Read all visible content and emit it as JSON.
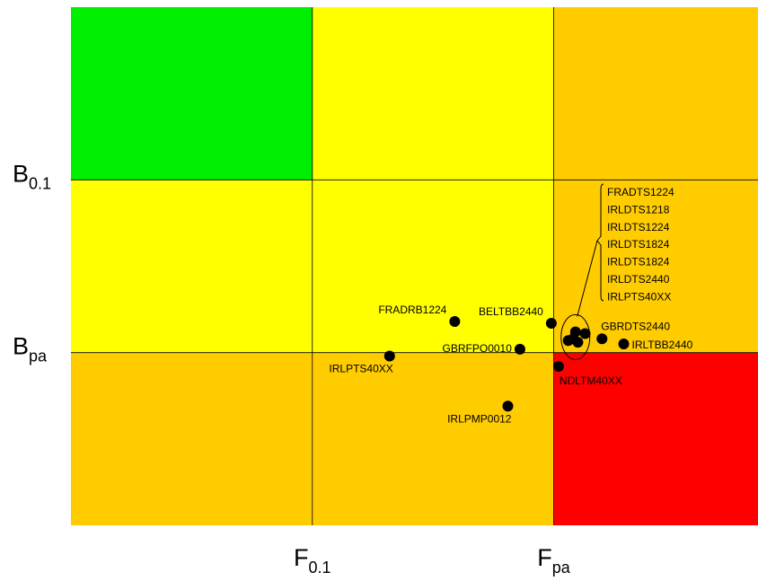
{
  "chart_data": {
    "type": "scatter",
    "title": "",
    "xlabel": "",
    "ylabel": "",
    "x_refs": [
      {
        "main": "F",
        "sub": "0.1",
        "value": 1
      },
      {
        "main": "F",
        "sub": "pa",
        "value": 2
      }
    ],
    "y_refs": [
      {
        "main": "B",
        "sub": "0.1",
        "value": 2
      },
      {
        "main": "B",
        "sub": "pa",
        "value": 1
      }
    ],
    "xlim": [
      0,
      2.85
    ],
    "ylim": [
      0,
      3
    ],
    "zones": [
      {
        "x": [
          0,
          1
        ],
        "y": [
          2,
          3
        ],
        "color": "#00ee00"
      },
      {
        "x": [
          1,
          2
        ],
        "y": [
          2,
          3
        ],
        "color": "#ffff00"
      },
      {
        "x": [
          2,
          2.85
        ],
        "y": [
          2,
          3
        ],
        "color": "#ffcc00"
      },
      {
        "x": [
          0,
          1
        ],
        "y": [
          1,
          2
        ],
        "color": "#ffff00"
      },
      {
        "x": [
          1,
          2
        ],
        "y": [
          1,
          2
        ],
        "color": "#ffff00"
      },
      {
        "x": [
          2,
          2.85
        ],
        "y": [
          1,
          2
        ],
        "color": "#ffcc00"
      },
      {
        "x": [
          0,
          1
        ],
        "y": [
          0,
          1
        ],
        "color": "#ffcc00"
      },
      {
        "x": [
          1,
          2
        ],
        "y": [
          0,
          1
        ],
        "color": "#ffcc00"
      },
      {
        "x": [
          2,
          2.85
        ],
        "y": [
          0,
          1
        ],
        "color": "#ff0000"
      }
    ],
    "points": [
      {
        "label": "FRADRB1224",
        "x": 1.59,
        "y": 1.18,
        "label_pos": "above-left"
      },
      {
        "label": "BELTBB2440",
        "x": 1.99,
        "y": 1.17,
        "label_pos": "above-left"
      },
      {
        "label": "GBRFPO0010",
        "x": 1.86,
        "y": 1.02,
        "label_pos": "left"
      },
      {
        "label": "IRLPTS40XX",
        "x": 1.32,
        "y": 0.98,
        "label_pos": "below-left"
      },
      {
        "label": "NDLTM40XX",
        "x": 2.02,
        "y": 0.92,
        "label_pos": "below-right"
      },
      {
        "label": "IRLPMP0012",
        "x": 1.81,
        "y": 0.69,
        "label_pos": "below-left"
      },
      {
        "label": "GBRDTS2440",
        "x": 2.2,
        "y": 1.08,
        "label_pos": "above-right"
      },
      {
        "label": "IRLTBB2440",
        "x": 2.29,
        "y": 1.05,
        "label_pos": "right"
      },
      {
        "label": "",
        "x": 2.06,
        "y": 1.07
      },
      {
        "label": "",
        "x": 2.09,
        "y": 1.12
      },
      {
        "label": "",
        "x": 2.1,
        "y": 1.06
      },
      {
        "label": "",
        "x": 2.13,
        "y": 1.11
      },
      {
        "label": "",
        "x": 2.08,
        "y": 1.08
      }
    ],
    "cluster": {
      "cx": 2.09,
      "cy": 1.09,
      "labels": [
        "FRADTS1224",
        "IRLDTS1218",
        "IRLDTS1224",
        "IRLDTS1824",
        "IRLDTS1824",
        "IRLDTS2440",
        "IRLPTS40XX"
      ]
    }
  }
}
